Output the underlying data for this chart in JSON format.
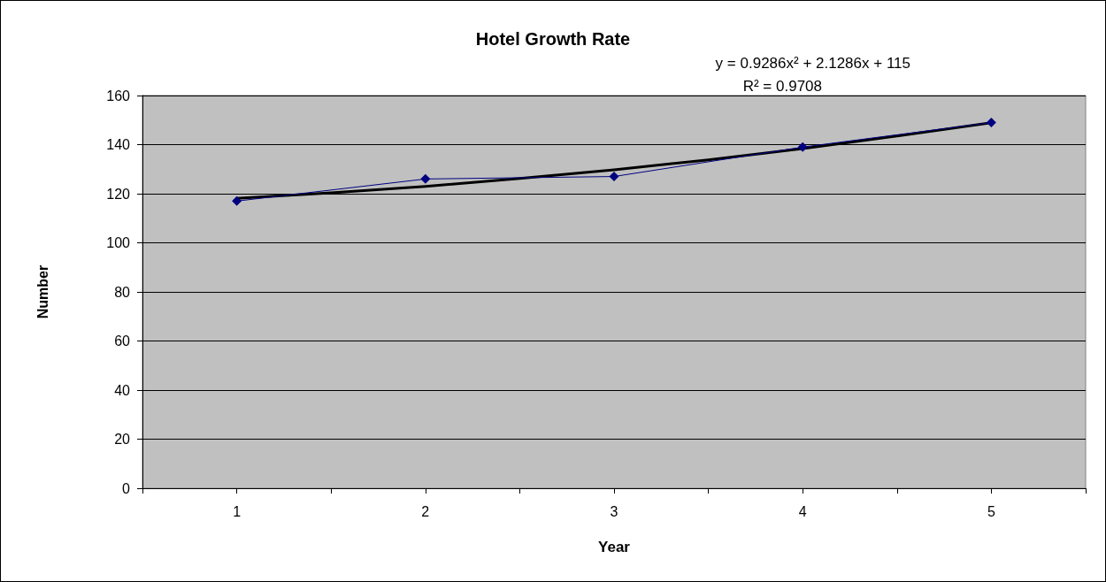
{
  "chart_data": {
    "type": "line",
    "title": "Hotel Growth Rate",
    "xlabel": "Year",
    "ylabel": "Number",
    "annotations": [
      "y = 0.9286x² + 2.1286x + 115",
      "R² = 0.9708"
    ],
    "x": [
      1,
      2,
      3,
      4,
      5
    ],
    "series": [
      {
        "color": "#000080",
        "values": [
          117,
          126,
          127,
          139,
          149
        ],
        "marker": "diamond"
      },
      {
        "color": "#000000",
        "x": [
          1,
          1.5,
          2,
          2.5,
          3,
          3.5,
          4,
          4.5,
          5
        ],
        "values": [
          118.1,
          120.4,
          123.0,
          126.2,
          129.7,
          133.8,
          138.4,
          143.5,
          148.9
        ],
        "marker": "none"
      }
    ],
    "xlim": [
      0.5,
      5.5
    ],
    "xticks": [
      {
        "value": 0.5,
        "label": null
      },
      1,
      {
        "value": 1.5,
        "label": null
      },
      2,
      {
        "value": 2.5,
        "label": null
      },
      3,
      {
        "value": 3.5,
        "label": null
      },
      4,
      {
        "value": 4.5,
        "label": null
      },
      5,
      {
        "value": 5.5,
        "label": null
      }
    ],
    "ylim": [
      0,
      160
    ],
    "yticks": [
      0,
      20,
      40,
      60,
      80,
      100,
      120,
      140,
      160
    ],
    "grid": "y"
  }
}
